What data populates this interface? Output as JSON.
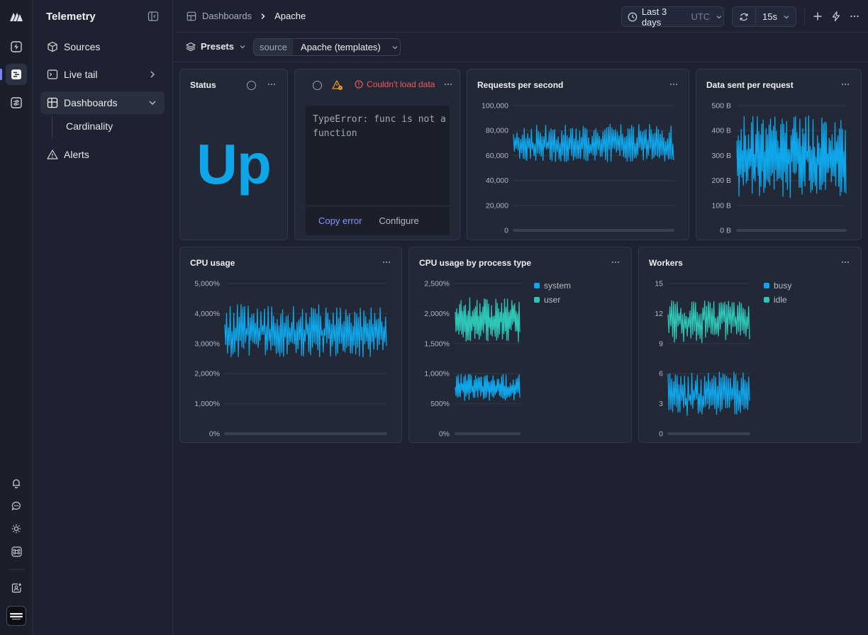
{
  "app": {
    "title": "Telemetry"
  },
  "colors": {
    "accent": "#0ea5e9",
    "teal": "#2ec4b6",
    "error": "#f05a5a",
    "link": "#8b93ff"
  },
  "rail": {
    "icons": [
      "logo-icon",
      "bolt-icon",
      "telemetry-icon",
      "settings-sliders-icon",
      "bell-icon",
      "chat-icon",
      "sun-icon",
      "command-icon",
      "add-member-icon",
      "org-avatar"
    ]
  },
  "sidebar": {
    "items": [
      {
        "label": "Sources"
      },
      {
        "label": "Live tail"
      },
      {
        "label": "Dashboards"
      },
      {
        "label": "Alerts"
      }
    ],
    "sub_items": [
      {
        "label": "Cardinality"
      }
    ]
  },
  "breadcrumb": {
    "parent": "Dashboards",
    "current": "Apache"
  },
  "toolbar": {
    "time_range": "Last 3 days",
    "timezone": "UTC",
    "refresh_interval": "15s"
  },
  "filters": {
    "presets_label": "Presets",
    "source_label": "source",
    "source_value": "Apache (templates)"
  },
  "panels": {
    "status": {
      "title": "Status",
      "value": "Up"
    },
    "error": {
      "message": "Couldn't load data",
      "code": "TypeError: func is not a function",
      "copy_label": "Copy error",
      "configure_label": "Configure"
    },
    "rps": {
      "title": "Requests per second"
    },
    "data_sent": {
      "title": "Data sent per request"
    },
    "cpu": {
      "title": "CPU usage"
    },
    "cpu_type": {
      "title": "CPU usage by process type"
    },
    "workers": {
      "title": "Workers"
    }
  },
  "chart_data": [
    {
      "id": "rps",
      "type": "line",
      "title": "Requests per second",
      "ylim": [
        0,
        100000
      ],
      "yticks": [
        "100,000",
        "80,000",
        "60,000",
        "40,000",
        "20,000",
        "0"
      ],
      "grid": true,
      "series": [
        {
          "values_range": [
            55000,
            85000
          ],
          "mean": 68000,
          "color": "#0ea5e9"
        }
      ]
    },
    {
      "id": "data_sent",
      "type": "line",
      "title": "Data sent per request",
      "ylim": [
        0,
        500
      ],
      "yticks": [
        "500 B",
        "400 B",
        "300 B",
        "200 B",
        "100 B",
        "0 B"
      ],
      "grid": true,
      "series": [
        {
          "values_range": [
            130,
            460
          ],
          "mean": 290,
          "color": "#0ea5e9"
        }
      ]
    },
    {
      "id": "cpu",
      "type": "line",
      "title": "CPU usage",
      "ylim": [
        0,
        5000
      ],
      "yticks": [
        "5,000%",
        "4,000%",
        "3,000%",
        "2,000%",
        "1,000%",
        "0%"
      ],
      "grid": true,
      "series": [
        {
          "values_range": [
            2550,
            4300
          ],
          "mean": 3400,
          "color": "#0ea5e9"
        }
      ]
    },
    {
      "id": "cpu_type",
      "type": "line",
      "title": "CPU usage by process type",
      "ylim": [
        0,
        2500
      ],
      "yticks": [
        "2,500%",
        "2,000%",
        "1,500%",
        "1,000%",
        "500%",
        "0%"
      ],
      "grid": true,
      "legend": "top-right",
      "series": [
        {
          "name": "system",
          "values_range": [
            550,
            1000
          ],
          "mean": 760,
          "color": "#0ea5e9"
        },
        {
          "name": "user",
          "values_range": [
            1530,
            2270
          ],
          "mean": 1880,
          "color": "#2ec4b6"
        }
      ]
    },
    {
      "id": "workers",
      "type": "line",
      "title": "Workers",
      "ylim": [
        0,
        15
      ],
      "yticks": [
        "15",
        "12",
        "9",
        "6",
        "3",
        "0"
      ],
      "grid": true,
      "legend": "top-right",
      "series": [
        {
          "name": "busy",
          "values_range": [
            1.8,
            6.2
          ],
          "mean": 3.5,
          "color": "#0ea5e9"
        },
        {
          "name": "idle",
          "values_range": [
            9.1,
            13.3
          ],
          "mean": 11.5,
          "color": "#2ec4b6"
        }
      ]
    }
  ]
}
